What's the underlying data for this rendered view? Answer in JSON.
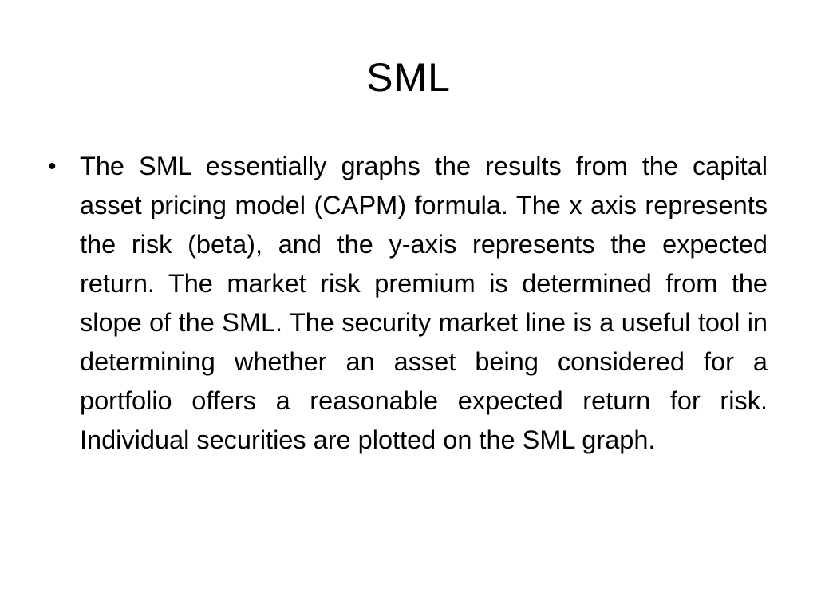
{
  "slide": {
    "title": "SML",
    "bullets": [
      {
        "glyph": "•",
        "text": "The SML essentially graphs the results from the capital asset pricing model (CAPM) formula. The x axis represents the risk (beta), and the y-axis represents the expected return. The market risk premium is determined from the slope of the SML. The security market line is a useful tool in determining whether an asset being considered for a portfolio offers a reasonable expected return for risk. Individual securities are plotted on the SML graph."
      }
    ]
  }
}
